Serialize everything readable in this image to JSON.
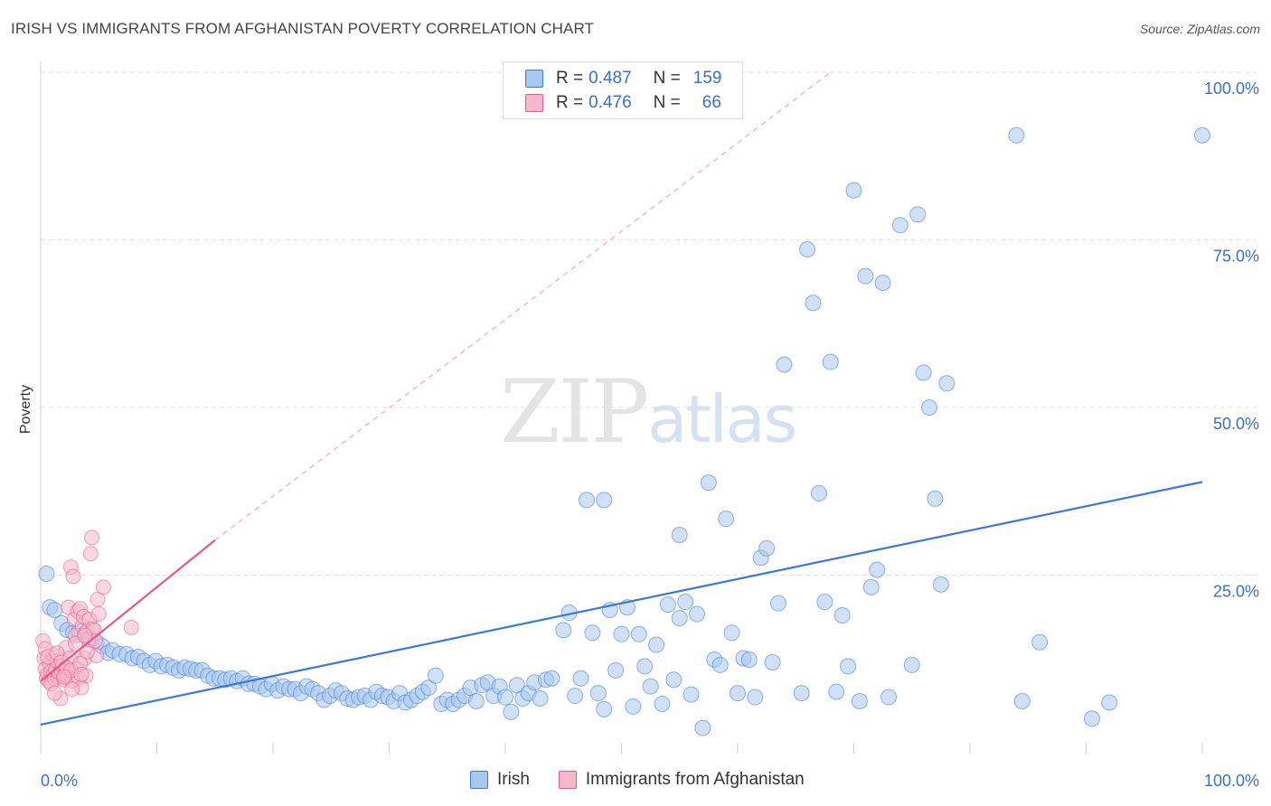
{
  "title": "IRISH VS IMMIGRANTS FROM AFGHANISTAN POVERTY CORRELATION CHART",
  "source": "Source: ZipAtlas.com",
  "watermark": {
    "zip": "ZIP",
    "atlas": "atlas"
  },
  "legend": {
    "r_label": "R =",
    "n_label": "N =",
    "rows": [
      {
        "r": "0.487",
        "n": "159",
        "color": "#a9c8ef"
      },
      {
        "r": "0.476",
        "n": "66",
        "color": "#f6b8cb"
      }
    ]
  },
  "bottom_legend": [
    {
      "label": "Irish",
      "color": "#a9c8ef"
    },
    {
      "label": "Immigrants from Afghanistan",
      "color": "#f6b8cb"
    }
  ],
  "chart_data": {
    "type": "scatter",
    "title": "IRISH VS IMMIGRANTS FROM AFGHANISTAN POVERTY CORRELATION CHART",
    "xlabel": "",
    "ylabel": "Poverty",
    "xlim": [
      0,
      100
    ],
    "ylim": [
      0,
      100
    ],
    "x_tick_labels": [
      "0.0%",
      "100.0%"
    ],
    "y_tick_labels": [
      "25.0%",
      "50.0%",
      "75.0%",
      "100.0%"
    ],
    "y_ticks": [
      25,
      50,
      75,
      100
    ],
    "grid": true,
    "legend_position": "top-center",
    "series": [
      {
        "name": "Irish",
        "color": "#3b78d8",
        "fill": "#a9c8ef",
        "trend": {
          "x": [
            0,
            100
          ],
          "y": [
            2.7,
            38.9
          ]
        },
        "points": [
          [
            0.5,
            25.2
          ],
          [
            0.8,
            20.2
          ],
          [
            1.2,
            19.8
          ],
          [
            1.8,
            17.8
          ],
          [
            2.3,
            16.8
          ],
          [
            2.8,
            16.4
          ],
          [
            3.3,
            16.6
          ],
          [
            3.8,
            16.2
          ],
          [
            4.3,
            15.4
          ],
          [
            4.8,
            15.0
          ],
          [
            5.3,
            14.4
          ],
          [
            5.8,
            13.4
          ],
          [
            6.2,
            13.8
          ],
          [
            6.8,
            13.2
          ],
          [
            7.4,
            13.2
          ],
          [
            7.9,
            12.6
          ],
          [
            8.4,
            12.8
          ],
          [
            8.9,
            12.2
          ],
          [
            9.4,
            11.6
          ],
          [
            9.9,
            12.2
          ],
          [
            10.4,
            11.4
          ],
          [
            10.9,
            11.6
          ],
          [
            11.4,
            11.2
          ],
          [
            11.9,
            10.8
          ],
          [
            12.4,
            11.2
          ],
          [
            12.9,
            11.0
          ],
          [
            13.4,
            10.8
          ],
          [
            13.9,
            10.8
          ],
          [
            14.4,
            10.0
          ],
          [
            14.9,
            9.6
          ],
          [
            15.4,
            9.6
          ],
          [
            15.9,
            9.4
          ],
          [
            16.4,
            9.6
          ],
          [
            16.9,
            9.2
          ],
          [
            17.4,
            9.6
          ],
          [
            17.9,
            8.8
          ],
          [
            18.4,
            8.8
          ],
          [
            18.9,
            8.4
          ],
          [
            19.4,
            8.0
          ],
          [
            19.9,
            8.8
          ],
          [
            20.4,
            7.8
          ],
          [
            20.9,
            8.4
          ],
          [
            21.4,
            8.0
          ],
          [
            21.9,
            8.0
          ],
          [
            22.4,
            7.4
          ],
          [
            22.9,
            8.4
          ],
          [
            23.4,
            8.0
          ],
          [
            23.9,
            7.4
          ],
          [
            24.4,
            6.4
          ],
          [
            24.9,
            7.0
          ],
          [
            25.4,
            7.8
          ],
          [
            25.9,
            7.4
          ],
          [
            26.4,
            6.6
          ],
          [
            26.9,
            6.4
          ],
          [
            27.4,
            6.8
          ],
          [
            27.9,
            7.0
          ],
          [
            28.4,
            6.4
          ],
          [
            28.9,
            7.6
          ],
          [
            29.4,
            7.0
          ],
          [
            29.9,
            6.8
          ],
          [
            30.4,
            6.2
          ],
          [
            30.9,
            7.4
          ],
          [
            31.4,
            6.0
          ],
          [
            31.9,
            6.4
          ],
          [
            32.4,
            7.0
          ],
          [
            32.9,
            7.6
          ],
          [
            33.4,
            8.2
          ],
          [
            34.0,
            10.0
          ],
          [
            34.5,
            5.8
          ],
          [
            35.0,
            6.4
          ],
          [
            35.5,
            5.8
          ],
          [
            36.0,
            6.4
          ],
          [
            36.5,
            7.0
          ],
          [
            37.0,
            8.2
          ],
          [
            37.5,
            6.2
          ],
          [
            38.0,
            8.6
          ],
          [
            38.5,
            9.0
          ],
          [
            39.0,
            7.0
          ],
          [
            39.5,
            8.4
          ],
          [
            40.0,
            6.8
          ],
          [
            40.5,
            4.6
          ],
          [
            41.0,
            8.6
          ],
          [
            41.5,
            6.6
          ],
          [
            42.0,
            7.4
          ],
          [
            42.5,
            9.0
          ],
          [
            43.0,
            6.6
          ],
          [
            43.5,
            9.4
          ],
          [
            44.0,
            9.6
          ],
          [
            45.0,
            16.8
          ],
          [
            45.5,
            19.4
          ],
          [
            46.0,
            7.0
          ],
          [
            46.5,
            9.6
          ],
          [
            47.0,
            36.2
          ],
          [
            47.5,
            16.4
          ],
          [
            48.0,
            7.4
          ],
          [
            48.5,
            5.0
          ],
          [
            49.0,
            19.8
          ],
          [
            49.5,
            10.8
          ],
          [
            50.0,
            16.2
          ],
          [
            50.5,
            20.2
          ],
          [
            51.0,
            5.4
          ],
          [
            51.5,
            16.2
          ],
          [
            52.0,
            11.4
          ],
          [
            52.5,
            8.4
          ],
          [
            53.0,
            14.6
          ],
          [
            53.5,
            5.8
          ],
          [
            54.0,
            20.6
          ],
          [
            54.5,
            9.4
          ],
          [
            55.0,
            18.6
          ],
          [
            55.5,
            21.0
          ],
          [
            56.0,
            7.2
          ],
          [
            56.5,
            19.2
          ],
          [
            57.0,
            2.2
          ],
          [
            57.5,
            38.8
          ],
          [
            58.0,
            12.4
          ],
          [
            58.5,
            11.6
          ],
          [
            59.0,
            33.4
          ],
          [
            59.5,
            16.4
          ],
          [
            60.0,
            7.4
          ],
          [
            60.5,
            12.6
          ],
          [
            61.0,
            12.4
          ],
          [
            61.5,
            6.8
          ],
          [
            62.0,
            27.6
          ],
          [
            62.5,
            29.0
          ],
          [
            63.0,
            12.0
          ],
          [
            63.5,
            20.8
          ],
          [
            64.0,
            56.4
          ],
          [
            65.5,
            7.4
          ],
          [
            66.0,
            73.6
          ],
          [
            66.5,
            65.6
          ],
          [
            67.0,
            37.2
          ],
          [
            67.5,
            21.0
          ],
          [
            68.0,
            56.8
          ],
          [
            68.5,
            7.6
          ],
          [
            69.0,
            19.0
          ],
          [
            69.5,
            11.4
          ],
          [
            70.0,
            82.4
          ],
          [
            70.5,
            6.2
          ],
          [
            71.0,
            69.6
          ],
          [
            71.5,
            23.2
          ],
          [
            72.0,
            25.8
          ],
          [
            72.5,
            68.6
          ],
          [
            73.0,
            6.8
          ],
          [
            74.0,
            77.2
          ],
          [
            75.0,
            11.6
          ],
          [
            75.5,
            78.8
          ],
          [
            76.0,
            55.2
          ],
          [
            76.5,
            50.0
          ],
          [
            77.0,
            36.4
          ],
          [
            77.5,
            23.6
          ],
          [
            78.0,
            53.6
          ],
          [
            84.0,
            90.6
          ],
          [
            84.5,
            6.2
          ],
          [
            86.0,
            15.0
          ],
          [
            90.5,
            3.6
          ],
          [
            92.0,
            6.0
          ],
          [
            100.0,
            90.6
          ],
          [
            55.0,
            31.0
          ],
          [
            48.5,
            36.2
          ]
        ]
      },
      {
        "name": "Immigrants from Afghanistan",
        "color": "#e8578a",
        "fill": "#f6b8cb",
        "trend": {
          "x": [
            0,
            15
          ],
          "y": [
            9.2,
            30.2
          ]
        },
        "trend_extension": {
          "x": [
            15,
            68
          ],
          "y": [
            30.2,
            100
          ]
        },
        "points": [
          [
            0.2,
            15.2
          ],
          [
            0.3,
            12.6
          ],
          [
            0.4,
            11.0
          ],
          [
            0.5,
            9.6
          ],
          [
            0.6,
            10.2
          ],
          [
            0.7,
            9.2
          ],
          [
            0.8,
            11.8
          ],
          [
            0.9,
            10.6
          ],
          [
            1.0,
            13.2
          ],
          [
            1.1,
            10.2
          ],
          [
            1.2,
            9.6
          ],
          [
            1.3,
            11.0
          ],
          [
            1.4,
            12.2
          ],
          [
            1.5,
            9.8
          ],
          [
            1.6,
            10.4
          ],
          [
            1.7,
            6.6
          ],
          [
            1.8,
            10.8
          ],
          [
            1.9,
            11.6
          ],
          [
            2.0,
            9.4
          ],
          [
            2.1,
            10.0
          ],
          [
            2.2,
            14.2
          ],
          [
            2.3,
            9.8
          ],
          [
            2.4,
            20.2
          ],
          [
            2.5,
            12.6
          ],
          [
            2.6,
            26.2
          ],
          [
            2.7,
            9.2
          ],
          [
            2.8,
            24.8
          ],
          [
            2.9,
            18.4
          ],
          [
            3.0,
            16.0
          ],
          [
            3.1,
            11.0
          ],
          [
            3.2,
            19.6
          ],
          [
            3.3,
            9.6
          ],
          [
            3.4,
            20.0
          ],
          [
            3.5,
            8.2
          ],
          [
            3.6,
            17.4
          ],
          [
            3.7,
            18.8
          ],
          [
            3.8,
            12.6
          ],
          [
            3.9,
            10.0
          ],
          [
            4.0,
            16.6
          ],
          [
            4.1,
            15.4
          ],
          [
            4.2,
            18.4
          ],
          [
            4.3,
            28.2
          ],
          [
            4.4,
            30.6
          ],
          [
            4.5,
            17.0
          ],
          [
            4.6,
            16.8
          ],
          [
            4.7,
            15.2
          ],
          [
            4.8,
            13.0
          ],
          [
            4.9,
            21.4
          ],
          [
            5.0,
            19.2
          ],
          [
            5.4,
            23.2
          ],
          [
            7.8,
            17.2
          ],
          [
            0.4,
            14.0
          ],
          [
            0.6,
            12.8
          ],
          [
            1.4,
            13.4
          ],
          [
            1.8,
            12.0
          ],
          [
            2.2,
            11.2
          ],
          [
            2.6,
            10.8
          ],
          [
            3.0,
            14.8
          ],
          [
            3.4,
            11.8
          ],
          [
            3.8,
            16.0
          ],
          [
            0.9,
            8.8
          ],
          [
            1.2,
            7.4
          ],
          [
            2.0,
            9.8
          ],
          [
            2.7,
            8.0
          ],
          [
            3.5,
            10.2
          ],
          [
            4.0,
            13.6
          ]
        ]
      }
    ]
  }
}
